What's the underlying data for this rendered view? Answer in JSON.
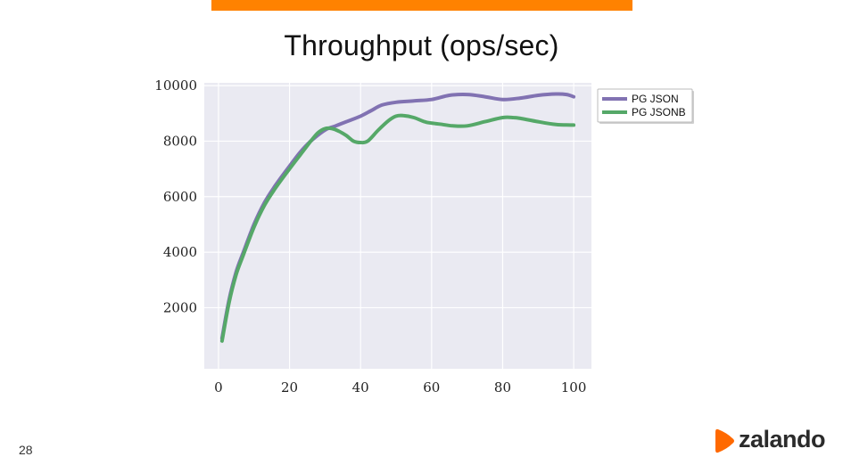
{
  "slide": {
    "title": "Throughput (ops/sec)",
    "page_number": "28",
    "brand": "zalando"
  },
  "colors": {
    "accent_bar": "#ff8200",
    "plot_bg": "#eaeaf2",
    "grid": "#ffffff",
    "logo_mark": "#ff6900"
  },
  "icons": {
    "logo": "zalando-logo-icon"
  },
  "chart_data": {
    "type": "line",
    "title": "Throughput (ops/sec)",
    "xlabel": "",
    "ylabel": "",
    "xlim": [
      -4,
      105
    ],
    "ylim": [
      -200,
      10100
    ],
    "x_ticks": [
      0,
      20,
      40,
      60,
      80,
      100
    ],
    "y_ticks": [
      2000,
      4000,
      6000,
      8000,
      10000
    ],
    "grid": true,
    "legend": "outside-top-right",
    "series": [
      {
        "name": "PG JSON",
        "color": "#8172b2",
        "x": [
          1,
          3,
          5,
          7,
          10,
          13,
          16,
          20,
          23,
          26,
          30,
          33,
          36,
          40,
          43,
          46,
          50,
          55,
          60,
          65,
          70,
          75,
          80,
          85,
          90,
          95,
          98,
          100
        ],
        "y": [
          900,
          2300,
          3300,
          4000,
          5000,
          5800,
          6400,
          7100,
          7600,
          8000,
          8400,
          8550,
          8700,
          8900,
          9100,
          9300,
          9400,
          9450,
          9500,
          9650,
          9680,
          9600,
          9500,
          9550,
          9650,
          9700,
          9680,
          9600
        ]
      },
      {
        "name": "PG JSONB",
        "color": "#55a868",
        "x": [
          1,
          3,
          5,
          7,
          10,
          13,
          16,
          20,
          23,
          26,
          28,
          30,
          32,
          34,
          36,
          38,
          40,
          42,
          45,
          48,
          50,
          52,
          55,
          58,
          60,
          63,
          66,
          70,
          75,
          80,
          83,
          85,
          90,
          95,
          100
        ],
        "y": [
          800,
          2200,
          3200,
          3900,
          4900,
          5700,
          6300,
          7000,
          7500,
          8000,
          8300,
          8450,
          8450,
          8350,
          8200,
          8000,
          7950,
          8000,
          8400,
          8750,
          8900,
          8920,
          8850,
          8700,
          8650,
          8600,
          8550,
          8550,
          8700,
          8850,
          8850,
          8820,
          8700,
          8600,
          8580
        ]
      }
    ]
  }
}
